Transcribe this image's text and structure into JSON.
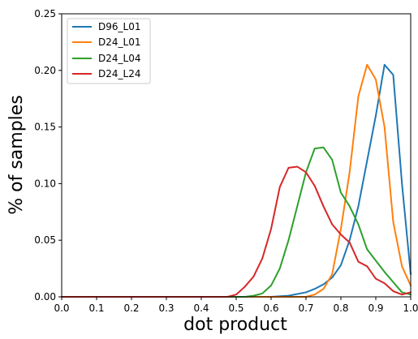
{
  "chart_data": {
    "type": "line",
    "title": "",
    "xlabel": "dot product",
    "ylabel": "% of samples",
    "xlim": [
      0.0,
      1.0
    ],
    "ylim": [
      0.0,
      0.25
    ],
    "xticks": [
      0.0,
      0.1,
      0.2,
      0.3,
      0.4,
      0.5,
      0.6,
      0.7,
      0.8,
      0.9,
      1.0
    ],
    "yticks": [
      0.0,
      0.05,
      0.1,
      0.15,
      0.2,
      0.25
    ],
    "xtick_labels": [
      "0.0",
      "0.1",
      "0.2",
      "0.3",
      "0.4",
      "0.5",
      "0.6",
      "0.7",
      "0.8",
      "0.9",
      "1.0"
    ],
    "ytick_labels": [
      "0.00",
      "0.05",
      "0.10",
      "0.15",
      "0.20",
      "0.25"
    ],
    "grid": false,
    "legend_position": "top-left",
    "series": [
      {
        "name": "D96_L01",
        "color": "#1f77b4",
        "x": [
          0.0,
          0.1,
          0.2,
          0.3,
          0.4,
          0.5,
          0.55,
          0.6,
          0.65,
          0.7,
          0.725,
          0.75,
          0.775,
          0.8,
          0.825,
          0.85,
          0.875,
          0.9,
          0.925,
          0.95,
          0.975,
          1.0
        ],
        "y": [
          0.0,
          0.0,
          0.0,
          0.0,
          0.0,
          0.0,
          0.0,
          0.0,
          0.001,
          0.004,
          0.007,
          0.011,
          0.017,
          0.028,
          0.05,
          0.08,
          0.12,
          0.16,
          0.205,
          0.196,
          0.1,
          0.02
        ]
      },
      {
        "name": "D24_L01",
        "color": "#ff7f0e",
        "x": [
          0.0,
          0.1,
          0.2,
          0.3,
          0.4,
          0.5,
          0.6,
          0.65,
          0.7,
          0.725,
          0.75,
          0.775,
          0.8,
          0.825,
          0.85,
          0.875,
          0.9,
          0.925,
          0.95,
          0.975,
          1.0
        ],
        "y": [
          0.0,
          0.0,
          0.0,
          0.0,
          0.0,
          0.0,
          0.0,
          0.0,
          0.0,
          0.002,
          0.007,
          0.02,
          0.06,
          0.11,
          0.177,
          0.205,
          0.192,
          0.15,
          0.066,
          0.027,
          0.01
        ]
      },
      {
        "name": "D24_L04",
        "color": "#2ca02c",
        "x": [
          0.0,
          0.1,
          0.2,
          0.3,
          0.4,
          0.5,
          0.525,
          0.55,
          0.575,
          0.6,
          0.625,
          0.65,
          0.675,
          0.7,
          0.725,
          0.75,
          0.775,
          0.8,
          0.825,
          0.85,
          0.875,
          0.9,
          0.925,
          0.95,
          0.975,
          1.0
        ],
        "y": [
          0.0,
          0.0,
          0.0,
          0.0,
          0.0,
          0.0,
          0.0,
          0.001,
          0.003,
          0.01,
          0.025,
          0.05,
          0.08,
          0.11,
          0.131,
          0.132,
          0.121,
          0.092,
          0.08,
          0.064,
          0.042,
          0.032,
          0.022,
          0.013,
          0.004,
          0.002
        ]
      },
      {
        "name": "D24_L24",
        "color": "#d62728",
        "x": [
          0.0,
          0.1,
          0.2,
          0.3,
          0.4,
          0.475,
          0.5,
          0.525,
          0.55,
          0.575,
          0.6,
          0.625,
          0.65,
          0.675,
          0.7,
          0.725,
          0.75,
          0.775,
          0.8,
          0.825,
          0.85,
          0.875,
          0.9,
          0.925,
          0.95,
          0.975,
          1.0
        ],
        "y": [
          0.0,
          0.0,
          0.0,
          0.0,
          0.0,
          0.0,
          0.002,
          0.009,
          0.018,
          0.034,
          0.06,
          0.097,
          0.114,
          0.115,
          0.11,
          0.098,
          0.08,
          0.064,
          0.055,
          0.048,
          0.031,
          0.027,
          0.016,
          0.012,
          0.005,
          0.002,
          0.004
        ]
      }
    ]
  }
}
